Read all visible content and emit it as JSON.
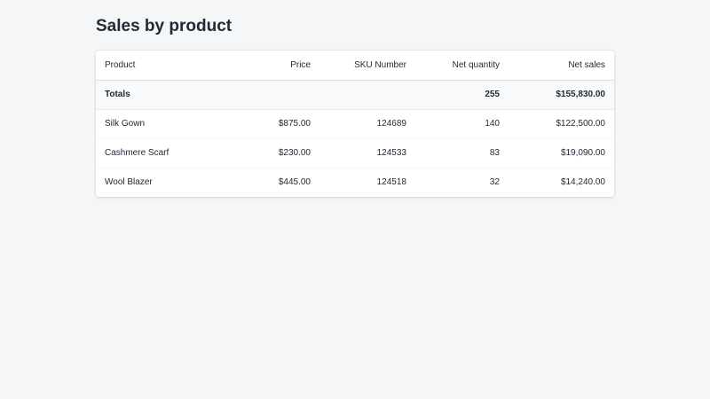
{
  "page": {
    "title": "Sales by product"
  },
  "table": {
    "headers": {
      "product": "Product",
      "price": "Price",
      "sku": "SKU Number",
      "net_quantity": "Net quantity",
      "net_sales": "Net sales"
    },
    "totals": {
      "label": "Totals",
      "price": "",
      "sku": "",
      "net_quantity": "255",
      "net_sales": "$155,830.00"
    },
    "rows": [
      {
        "product": "Silk Gown",
        "price": "$875.00",
        "sku": "124689",
        "net_quantity": "140",
        "net_sales": "$122,500.00"
      },
      {
        "product": "Cashmere Scarf",
        "price": "$230.00",
        "sku": "124533",
        "net_quantity": "83",
        "net_sales": "$19,090.00"
      },
      {
        "product": "Wool Blazer",
        "price": "$445.00",
        "sku": "124518",
        "net_quantity": "32",
        "net_sales": "$14,240.00"
      }
    ]
  }
}
